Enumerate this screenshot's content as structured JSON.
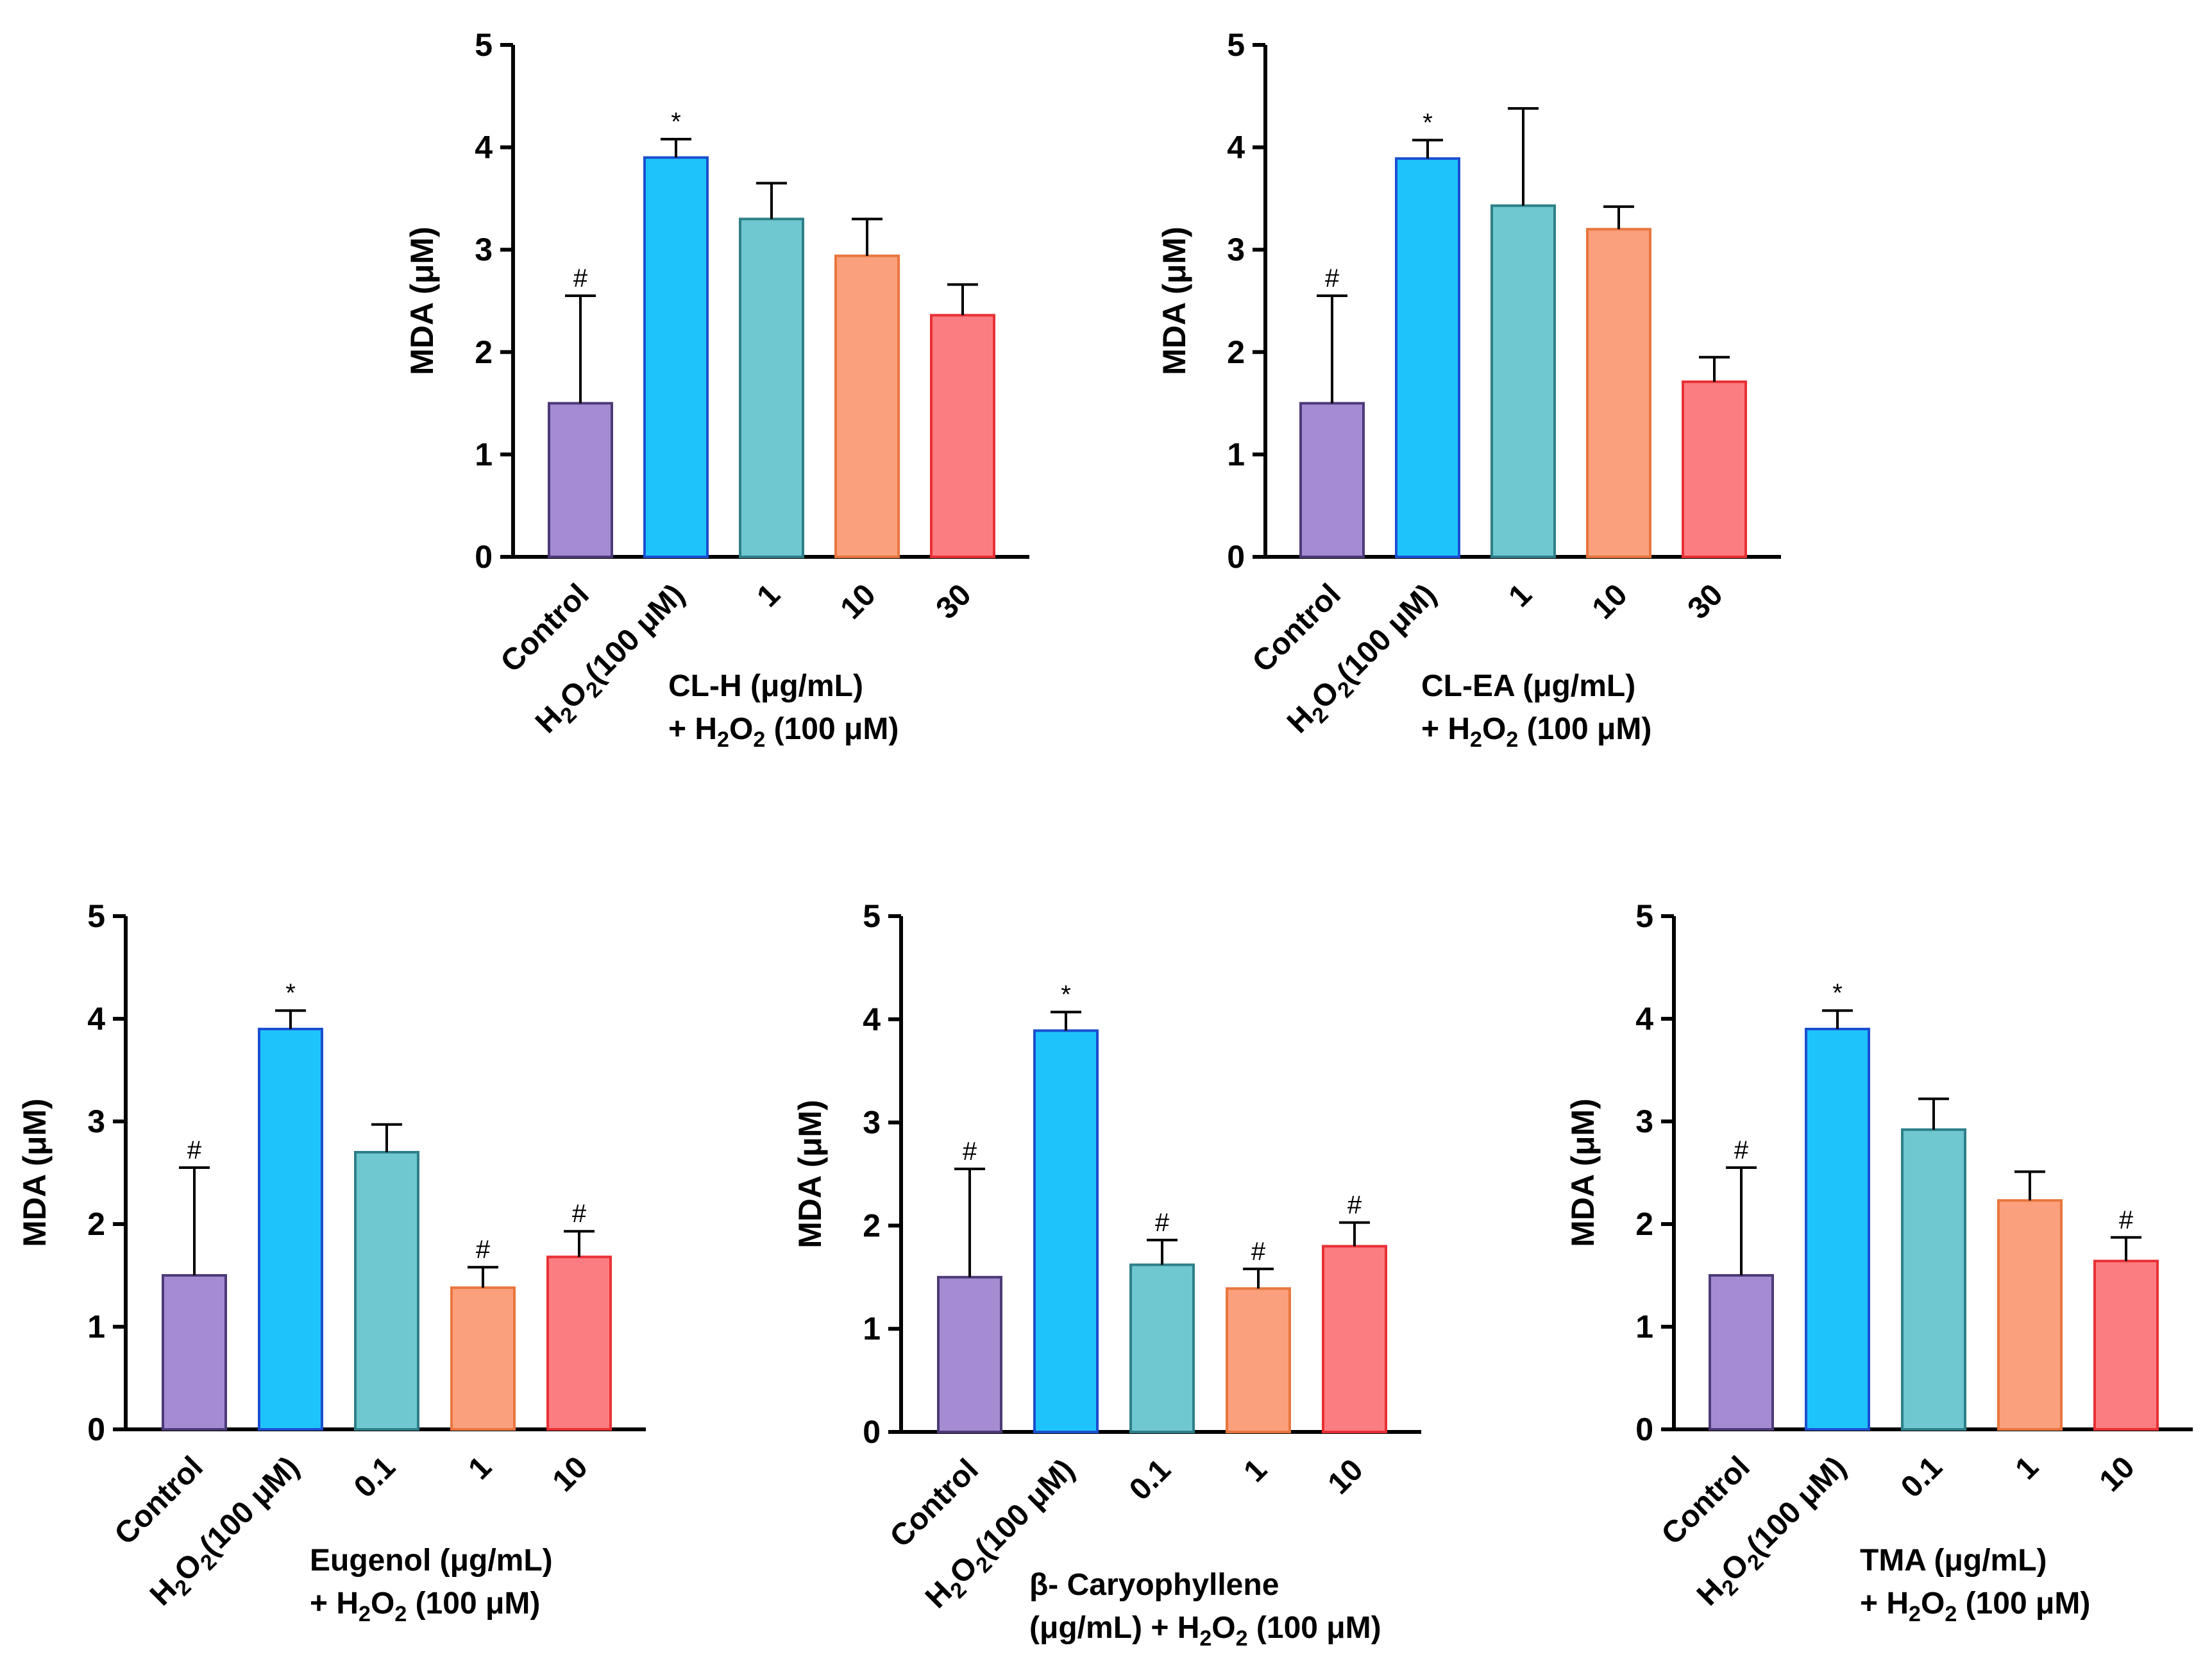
{
  "chart_data": [
    {
      "type": "bar",
      "id": "cl-h",
      "ylabel": "MDA (μM)",
      "ylim": [
        0,
        5
      ],
      "yticks": [
        "0",
        "1",
        "2",
        "3",
        "4",
        "5"
      ],
      "categories": [
        "Control",
        "H2O2(100 μM)",
        "1",
        "10",
        "30"
      ],
      "values": [
        1.5,
        3.9,
        3.3,
        2.94,
        2.36
      ],
      "errors": [
        1.05,
        0.18,
        0.35,
        0.36,
        0.3
      ],
      "significance": [
        "#",
        "*",
        "",
        "",
        ""
      ],
      "colors": [
        "#a48bd2",
        "#1fc3fb",
        "#6fc8cf",
        "#fba07c",
        "#fb7d81"
      ],
      "edge_colors": [
        "#4d3a78",
        "#1a4fd0",
        "#2e7f88",
        "#e8763e",
        "#e83035"
      ],
      "group_label": [
        "CL-H (μg/mL)",
        "+ H2O2 (100 μM)"
      ]
    },
    {
      "type": "bar",
      "id": "cl-ea",
      "ylabel": "MDA (μM)",
      "ylim": [
        0,
        5
      ],
      "yticks": [
        "0",
        "1",
        "2",
        "3",
        "4",
        "5"
      ],
      "categories": [
        "Control",
        "H2O2(100 μM)",
        "1",
        "10",
        "30"
      ],
      "values": [
        1.5,
        3.89,
        3.43,
        3.2,
        1.71
      ],
      "errors": [
        1.05,
        0.18,
        0.95,
        0.22,
        0.24
      ],
      "significance": [
        "#",
        "*",
        "",
        "",
        ""
      ],
      "colors": [
        "#a48bd2",
        "#1fc3fb",
        "#6fc8cf",
        "#fba07c",
        "#fb7d81"
      ],
      "edge_colors": [
        "#4d3a78",
        "#1a4fd0",
        "#2e7f88",
        "#e8763e",
        "#e83035"
      ],
      "group_label": [
        "CL-EA (μg/mL)",
        "+ H2O2 (100 μM)"
      ]
    },
    {
      "type": "bar",
      "id": "eugenol",
      "ylabel": "MDA (μM)",
      "ylim": [
        0,
        5
      ],
      "yticks": [
        "0",
        "1",
        "2",
        "3",
        "4",
        "5"
      ],
      "categories": [
        "Control",
        "H2O2(100 μM)",
        "0.1",
        "1",
        "10"
      ],
      "values": [
        1.5,
        3.9,
        2.7,
        1.38,
        1.68
      ],
      "errors": [
        1.05,
        0.18,
        0.27,
        0.2,
        0.25
      ],
      "significance": [
        "#",
        "*",
        "",
        "#",
        "#"
      ],
      "colors": [
        "#a48bd2",
        "#1fc3fb",
        "#6fc8cf",
        "#fba07c",
        "#fb7d81"
      ],
      "edge_colors": [
        "#4d3a78",
        "#1a4fd0",
        "#2e7f88",
        "#e8763e",
        "#e83035"
      ],
      "group_label": [
        "Eugenol (μg/mL)",
        "+ H2O2 (100 μM)"
      ]
    },
    {
      "type": "bar",
      "id": "caryophyllene",
      "ylabel": "MDA (μM)",
      "ylim": [
        0,
        5
      ],
      "yticks": [
        "0",
        "1",
        "2",
        "3",
        "4",
        "5"
      ],
      "categories": [
        "Control",
        "H2O2(100 μM)",
        "0.1",
        "1",
        "10"
      ],
      "values": [
        1.5,
        3.89,
        1.62,
        1.39,
        1.8
      ],
      "errors": [
        1.05,
        0.18,
        0.24,
        0.19,
        0.23
      ],
      "significance": [
        "#",
        "*",
        "#",
        "#",
        "#"
      ],
      "colors": [
        "#a48bd2",
        "#1fc3fb",
        "#6fc8cf",
        "#fba07c",
        "#fb7d81"
      ],
      "edge_colors": [
        "#4d3a78",
        "#1a4fd0",
        "#2e7f88",
        "#e8763e",
        "#e83035"
      ],
      "group_label": [
        "β- Caryophyllene",
        "(μg/mL) + H2O2 (100 μM)"
      ]
    },
    {
      "type": "bar",
      "id": "tma",
      "ylabel": "MDA (μM)",
      "ylim": [
        0,
        5
      ],
      "yticks": [
        "0",
        "1",
        "2",
        "3",
        "4",
        "5"
      ],
      "categories": [
        "Control",
        "H2O2(100 μM)",
        "0.1",
        "1",
        "10"
      ],
      "values": [
        1.5,
        3.9,
        2.92,
        2.23,
        1.64
      ],
      "errors": [
        1.05,
        0.18,
        0.3,
        0.28,
        0.23
      ],
      "significance": [
        "#",
        "*",
        "",
        "",
        "#"
      ],
      "colors": [
        "#a48bd2",
        "#1fc3fb",
        "#6fc8cf",
        "#fba07c",
        "#fb7d81"
      ],
      "edge_colors": [
        "#4d3a78",
        "#1a4fd0",
        "#2e7f88",
        "#e8763e",
        "#e83035"
      ],
      "group_label": [
        "TMA (μg/mL)",
        "+ H2O2 (100 μM)"
      ]
    }
  ]
}
